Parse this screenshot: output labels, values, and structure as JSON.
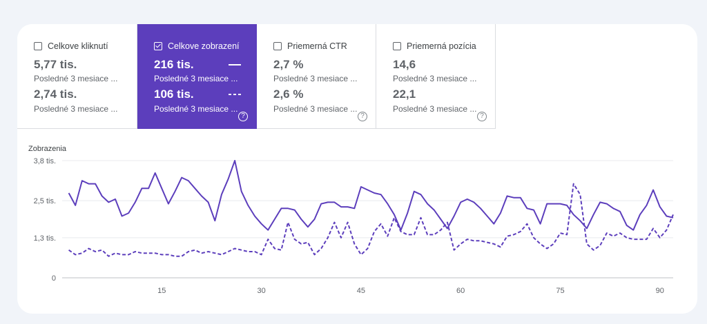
{
  "metrics": [
    {
      "label": "Celkove kliknutí",
      "checked": false,
      "value1": "5,77 tis.",
      "sub1": "Posledné 3 mesiace ...",
      "value2": "2,74 tis.",
      "sub2": "Posledné 3 mesiace ..."
    },
    {
      "label": "Celkove zobrazení",
      "checked": true,
      "value1": "216 tis.",
      "sub1": "Posledné 3 mesiace ...",
      "value2": "106 tis.",
      "sub2": "Posledné 3 mesiace ..."
    },
    {
      "label": "Priemerná CTR",
      "checked": false,
      "value1": "2,7 %",
      "sub1": "Posledné 3 mesiace ...",
      "value2": "2,6 %",
      "sub2": "Posledné 3 mesiace ..."
    },
    {
      "label": "Priemerná pozícia",
      "checked": false,
      "value1": "14,6",
      "sub1": "Posledné 3 mesiace ...",
      "value2": "22,1",
      "sub2": "Posledné 3 mesiace ..."
    }
  ],
  "help_glyph": "?",
  "colors": {
    "accent": "#5c3ebc",
    "line": "#5c3ebc"
  },
  "chart_data": {
    "type": "line",
    "ylabel": "Zobrazenia",
    "y_ticks": [
      0,
      1300,
      2500,
      3800
    ],
    "y_tick_labels": [
      "0",
      "1,3 tis.",
      "2,5 tis.",
      "3,8 tis."
    ],
    "ylim": [
      0,
      3800
    ],
    "x_ticks": [
      15,
      30,
      45,
      60,
      75,
      90
    ],
    "x_tick_labels": [
      "15",
      "30",
      "45",
      "60",
      "75",
      "90"
    ],
    "xlim": [
      0,
      92
    ],
    "grid": true,
    "series": [
      {
        "style": "solid",
        "x": [
          1,
          2,
          3,
          4,
          5,
          6,
          7,
          8,
          9,
          10,
          11,
          12,
          13,
          14,
          15,
          16,
          17,
          18,
          19,
          20,
          21,
          22,
          23,
          24,
          25,
          26,
          27,
          28,
          29,
          30,
          31,
          32,
          33,
          34,
          35,
          36,
          37,
          38,
          39,
          40,
          41,
          42,
          43,
          44,
          45,
          46,
          47,
          48,
          49,
          50,
          51,
          52,
          53,
          54,
          55,
          56,
          57,
          58,
          59,
          60,
          61,
          62,
          63,
          64,
          65,
          66,
          67,
          68,
          69,
          70,
          71,
          72,
          73,
          74,
          75,
          76,
          77,
          78,
          79,
          80,
          81,
          82,
          83,
          84,
          85,
          86,
          87,
          88,
          89,
          90,
          91,
          92
        ],
        "values": [
          2750,
          2350,
          3150,
          3050,
          3050,
          2650,
          2450,
          2550,
          2000,
          2100,
          2450,
          2900,
          2900,
          3400,
          2900,
          2400,
          2800,
          3250,
          3150,
          2900,
          2650,
          2450,
          1850,
          2700,
          3200,
          3800,
          2800,
          2350,
          2000,
          1750,
          1550,
          1900,
          2250,
          2250,
          2200,
          1900,
          1650,
          1900,
          2400,
          2450,
          2450,
          2300,
          2300,
          2250,
          2950,
          2850,
          2750,
          2700,
          2400,
          2050,
          1550,
          2100,
          2800,
          2700,
          2400,
          2200,
          1900,
          1600,
          2000,
          2450,
          2550,
          2450,
          2250,
          2000,
          1750,
          2100,
          2650,
          2600,
          2600,
          2250,
          2200,
          1750,
          2400,
          2400,
          2400,
          2350,
          2050,
          1850,
          1600,
          2050,
          2450,
          2400,
          2250,
          2150,
          1700,
          1550,
          2050,
          2350,
          2850,
          2300,
          2000,
          1950
        ]
      },
      {
        "style": "dashed",
        "x": [
          1,
          2,
          3,
          4,
          5,
          6,
          7,
          8,
          9,
          10,
          11,
          12,
          13,
          14,
          15,
          16,
          17,
          18,
          19,
          20,
          21,
          22,
          23,
          24,
          25,
          26,
          27,
          28,
          29,
          30,
          31,
          32,
          33,
          34,
          35,
          36,
          37,
          38,
          39,
          40,
          41,
          42,
          43,
          44,
          45,
          46,
          47,
          48,
          49,
          50,
          51,
          52,
          53,
          54,
          55,
          56,
          57,
          58,
          59,
          60,
          61,
          62,
          63,
          64,
          65,
          66,
          67,
          68,
          69,
          70,
          71,
          72,
          73,
          74,
          75,
          76,
          77,
          78,
          79,
          80,
          81,
          82,
          83,
          84,
          85,
          86,
          87,
          88,
          89,
          90,
          91,
          92
        ],
        "values": [
          900,
          750,
          800,
          950,
          850,
          900,
          700,
          800,
          750,
          750,
          850,
          800,
          800,
          800,
          750,
          750,
          700,
          700,
          850,
          900,
          800,
          850,
          800,
          750,
          850,
          950,
          900,
          850,
          850,
          750,
          1250,
          950,
          900,
          1800,
          1250,
          1100,
          1150,
          750,
          950,
          1300,
          1800,
          1300,
          1800,
          1100,
          750,
          950,
          1500,
          1750,
          1350,
          1950,
          1500,
          1400,
          1400,
          1950,
          1400,
          1400,
          1550,
          1800,
          900,
          1100,
          1250,
          1200,
          1200,
          1150,
          1100,
          1000,
          1350,
          1400,
          1500,
          1750,
          1300,
          1100,
          950,
          1100,
          1450,
          1400,
          3050,
          2700,
          1100,
          900,
          1050,
          1450,
          1350,
          1450,
          1300,
          1250,
          1250,
          1250,
          1600,
          1300,
          1550,
          2050
        ]
      }
    ]
  }
}
